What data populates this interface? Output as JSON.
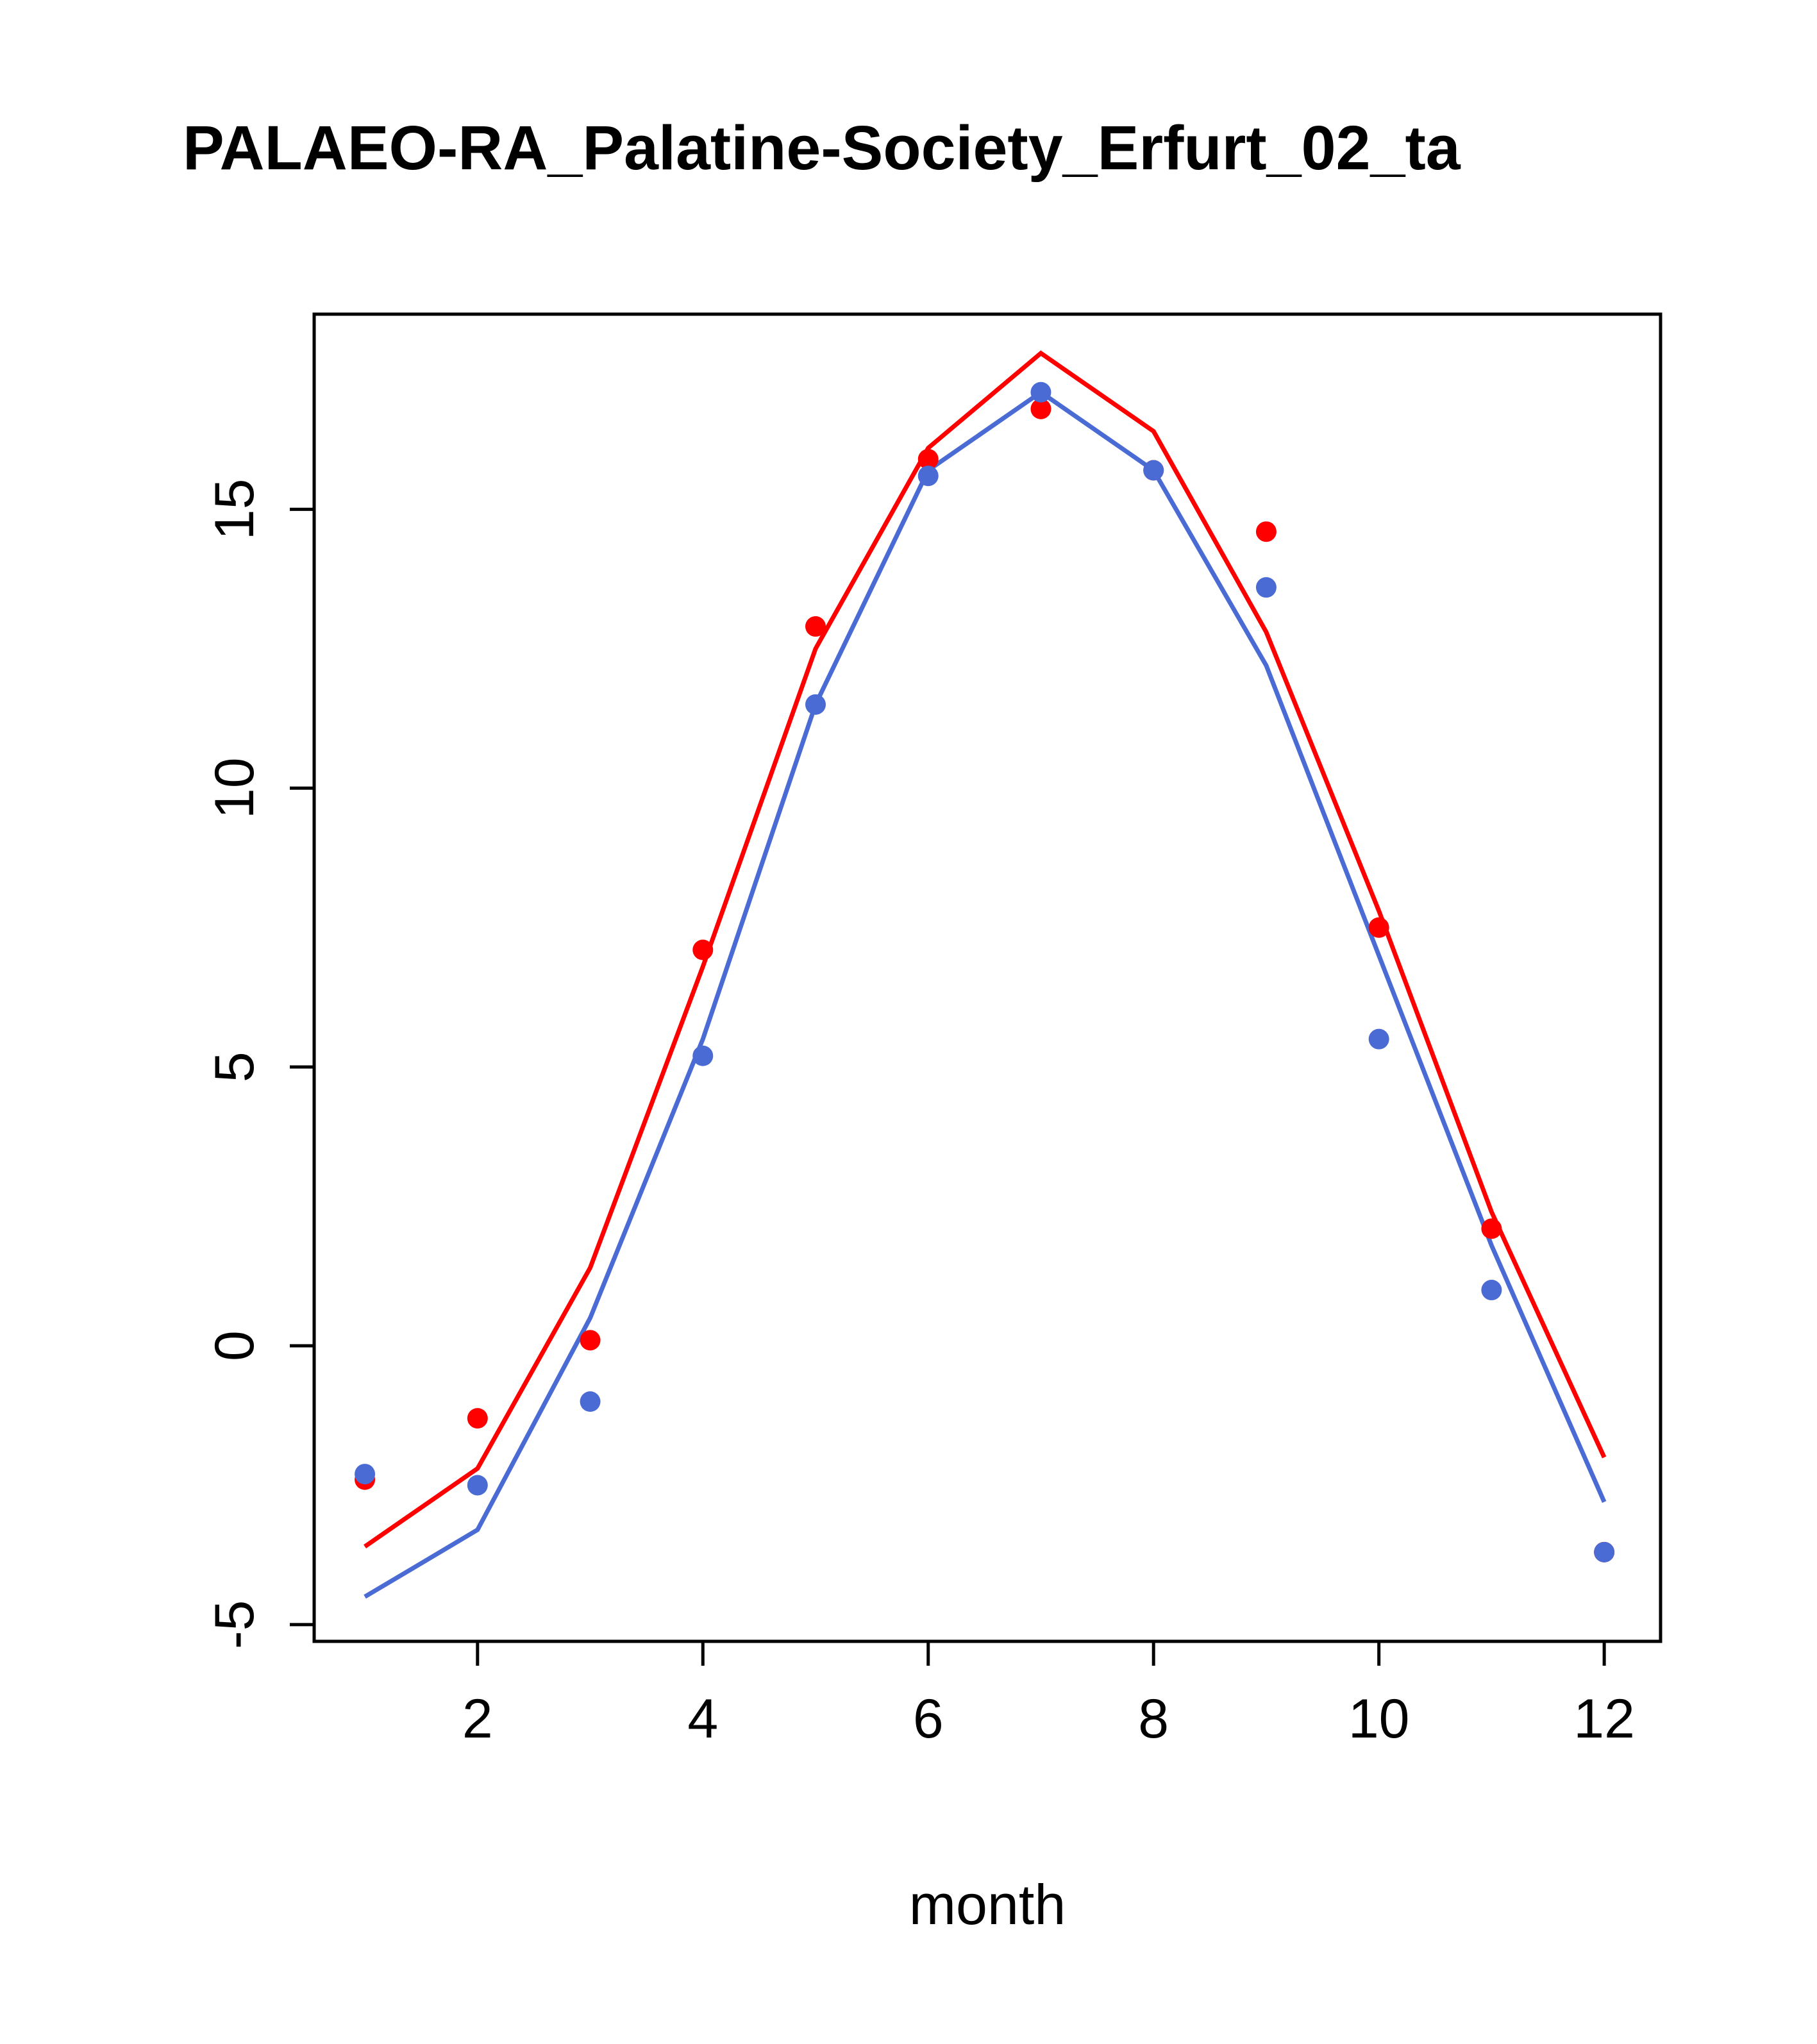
{
  "title": "PALAEO-RA_Palatine-Society_Erfurt_02_ta",
  "chart_data": {
    "type": "line",
    "title": "PALAEO-RA_Palatine-Society_Erfurt_02_ta",
    "xlabel": "month",
    "ylabel": "",
    "x": [
      1,
      2,
      3,
      4,
      5,
      6,
      7,
      8,
      9,
      10,
      11,
      12
    ],
    "xticks": [
      2,
      4,
      6,
      8,
      10,
      12
    ],
    "yticks": [
      -5,
      0,
      5,
      10,
      15
    ],
    "xlim": [
      0.55,
      12.5
    ],
    "ylim": [
      -5.3,
      18.5
    ],
    "grid": false,
    "legend": "none",
    "colors": {
      "red": "#ff0000",
      "blue": "#4a6bd4"
    },
    "series": [
      {
        "name": "red-line",
        "draw": "line",
        "color": "#ff0000",
        "values": [
          -3.6,
          -2.2,
          1.4,
          6.8,
          12.5,
          16.1,
          17.8,
          16.4,
          12.8,
          7.8,
          2.4,
          -2.0
        ]
      },
      {
        "name": "blue-line",
        "draw": "line",
        "color": "#4a6bd4",
        "values": [
          -4.5,
          -3.3,
          0.5,
          5.5,
          11.5,
          15.7,
          17.1,
          15.7,
          12.2,
          7.0,
          1.8,
          -2.8
        ]
      },
      {
        "name": "red-points",
        "draw": "scatter",
        "color": "#ff0000",
        "values": [
          -2.4,
          -1.3,
          0.1,
          7.1,
          12.9,
          15.9,
          16.8,
          15.7,
          14.6,
          7.5,
          2.1,
          -3.7
        ]
      },
      {
        "name": "blue-points",
        "draw": "scatter",
        "color": "#4a6bd4",
        "values": [
          -2.3,
          -2.5,
          -1.0,
          5.2,
          11.5,
          15.6,
          17.1,
          15.7,
          13.6,
          5.5,
          1.0,
          -3.7
        ]
      }
    ]
  }
}
